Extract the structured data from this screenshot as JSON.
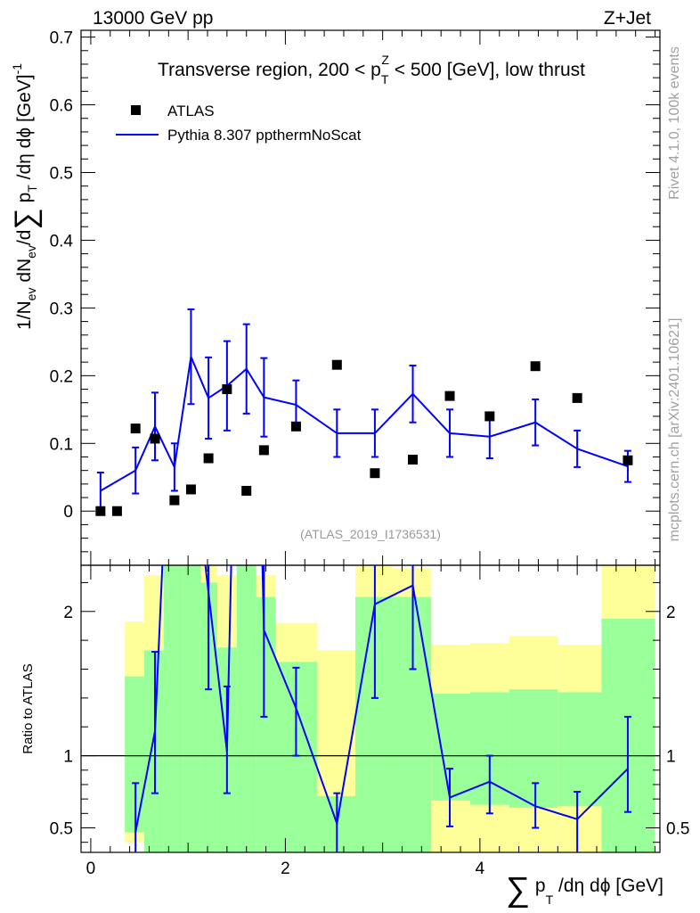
{
  "header": {
    "left": "13000 GeV pp",
    "right": "Z+Jet"
  },
  "side_text": {
    "rivet": "Rivet 4.1.0,  100k events",
    "mcplots": "mcplots.cern.ch [arXiv:2401.10621]"
  },
  "chart_data": {
    "type": "scatter",
    "title": "Transverse region, 200 < p_T^Z < 500 [GeV], low thrust",
    "title_parts": {
      "pre": "Transverse region, 200 < p",
      "sub": "T",
      "sup": "Z",
      "post": " < 500 [GeV], low thrust"
    },
    "analysis_label": "(ATLAS_2019_I1736531)",
    "xlabel": {
      "sigma": "∑",
      "p": "p",
      "sub": "T",
      "rest": " /dη dϕ [GeV]"
    },
    "ylabel_main": "1/N_ev dN_ev/d∑ p_T /dη dϕ  [GeV]^-1",
    "ylabel_ratio": "Ratio to ATLAS",
    "xlim": [
      -0.1,
      5.85
    ],
    "x_ticks": [
      "0",
      "2",
      "4"
    ],
    "main_ylim": [
      -0.08,
      0.71
    ],
    "main_y_ticks": [
      "0",
      "0.1",
      "0.2",
      "0.3",
      "0.4",
      "0.5",
      "0.6",
      "0.7"
    ],
    "ratio_ylim": [
      0.33,
      2.32
    ],
    "ratio_y_ticks": [
      "0.5",
      "1",
      "2"
    ],
    "legend": [
      {
        "name": "ATLAS",
        "marker": "square",
        "color": "#000000"
      },
      {
        "name": "Pythia 8.307 ppthermNoScat",
        "marker": "line",
        "color": "#0000ff"
      }
    ],
    "series": [
      {
        "name": "ATLAS",
        "x": [
          0.1,
          0.27,
          0.46,
          0.66,
          0.86,
          1.03,
          1.21,
          1.4,
          1.6,
          1.78,
          2.11,
          2.53,
          2.92,
          3.31,
          3.69,
          4.1,
          4.57,
          5.0,
          5.52
        ],
        "y": [
          0.0,
          0.0,
          0.122,
          0.107,
          0.016,
          0.032,
          0.078,
          0.18,
          0.03,
          0.09,
          0.125,
          0.216,
          0.056,
          0.076,
          0.17,
          0.14,
          0.214,
          0.167,
          0.075
        ]
      },
      {
        "name": "Pythia 8.307 ppthermNoScat",
        "x": [
          0.1,
          0.46,
          0.66,
          0.86,
          1.03,
          1.21,
          1.4,
          1.6,
          1.78,
          2.11,
          2.53,
          2.92,
          3.31,
          3.69,
          4.1,
          4.57,
          5.0,
          5.52
        ],
        "y": [
          0.03,
          0.06,
          0.125,
          0.065,
          0.228,
          0.167,
          0.185,
          0.21,
          0.168,
          0.157,
          0.115,
          0.115,
          0.173,
          0.115,
          0.11,
          0.131,
          0.092,
          0.066
        ],
        "err": [
          0.027,
          0.034,
          0.05,
          0.035,
          0.07,
          0.06,
          0.066,
          0.066,
          0.058,
          0.036,
          0.035,
          0.035,
          0.042,
          0.035,
          0.032,
          0.034,
          0.027,
          0.023
        ]
      }
    ],
    "ratio": {
      "x": [
        0.46,
        0.66,
        0.86,
        1.21,
        1.4,
        1.6,
        1.78,
        2.11,
        2.53,
        2.92,
        3.31,
        3.69,
        4.1,
        4.57,
        5.0,
        5.52
      ],
      "y": [
        0.47,
        1.17,
        4.2,
        2.13,
        1.03,
        7.0,
        1.87,
        1.33,
        0.53,
        2.05,
        2.18,
        0.71,
        0.82,
        0.65,
        0.56,
        0.91
      ],
      "lo": [
        0.3,
        0.74,
        2.8,
        1.46,
        0.74,
        4.5,
        1.27,
        1.0,
        0.3,
        1.4,
        1.6,
        0.51,
        0.6,
        0.5,
        0.32,
        0.61
      ],
      "hi": [
        0.81,
        1.72,
        5.0,
        2.8,
        1.48,
        9.0,
        2.6,
        1.61,
        0.74,
        2.6,
        2.7,
        0.91,
        1.0,
        0.81,
        0.75,
        1.27
      ],
      "bands": [
        {
          "x0": 0.35,
          "x1": 0.55,
          "g_lo": 0.47,
          "g_hi": 1.55,
          "y_lo": 0.4,
          "y_hi": 1.93
        },
        {
          "x0": 0.55,
          "x1": 0.75,
          "g_lo": 0.33,
          "g_hi": 1.73,
          "y_lo": 0.33,
          "y_hi": 2.25
        },
        {
          "x0": 0.75,
          "x1": 0.95,
          "g_lo": 0.33,
          "g_hi": 2.35,
          "y_lo": 0.33,
          "y_hi": 2.35
        },
        {
          "x0": 0.95,
          "x1": 1.13,
          "g_lo": 0.33,
          "g_hi": 2.35,
          "y_lo": 0.33,
          "y_hi": 2.35
        },
        {
          "x0": 1.13,
          "x1": 1.3,
          "g_lo": 0.33,
          "g_hi": 2.2,
          "y_lo": 0.33,
          "y_hi": 2.35
        },
        {
          "x0": 1.3,
          "x1": 1.5,
          "g_lo": 0.33,
          "g_hi": 1.75,
          "y_lo": 0.33,
          "y_hi": 2.25
        },
        {
          "x0": 1.5,
          "x1": 1.7,
          "g_lo": 0.33,
          "g_hi": 2.35,
          "y_lo": 0.33,
          "y_hi": 2.35
        },
        {
          "x0": 1.7,
          "x1": 1.9,
          "g_lo": 0.33,
          "g_hi": 2.1,
          "y_lo": 0.33,
          "y_hi": 2.25
        },
        {
          "x0": 1.9,
          "x1": 2.33,
          "g_lo": 0.33,
          "g_hi": 1.65,
          "y_lo": 0.33,
          "y_hi": 1.92
        },
        {
          "x0": 2.33,
          "x1": 2.72,
          "g_lo": 0.33,
          "g_hi": 0.72,
          "y_lo": 0.33,
          "y_hi": 1.73
        },
        {
          "x0": 2.72,
          "x1": 3.1,
          "g_lo": 0.33,
          "g_hi": 2.1,
          "y_lo": 0.33,
          "y_hi": 2.35
        },
        {
          "x0": 3.1,
          "x1": 3.5,
          "g_lo": 0.33,
          "g_hi": 2.1,
          "y_lo": 0.33,
          "y_hi": 2.3
        },
        {
          "x0": 3.5,
          "x1": 3.9,
          "g_lo": 0.69,
          "g_hi": 1.43,
          "y_lo": 0.33,
          "y_hi": 1.77
        },
        {
          "x0": 3.9,
          "x1": 4.3,
          "g_lo": 0.66,
          "g_hi": 1.44,
          "y_lo": 0.33,
          "y_hi": 1.78
        },
        {
          "x0": 4.3,
          "x1": 4.8,
          "g_lo": 0.64,
          "g_hi": 1.46,
          "y_lo": 0.33,
          "y_hi": 1.83
        },
        {
          "x0": 4.8,
          "x1": 5.25,
          "g_lo": 0.65,
          "g_hi": 1.44,
          "y_lo": 0.33,
          "y_hi": 1.77
        },
        {
          "x0": 5.25,
          "x1": 5.8,
          "g_lo": 0.33,
          "g_hi": 1.95,
          "y_lo": 0.33,
          "y_hi": 2.35
        }
      ],
      "band_colors": {
        "inner": "#99ff99",
        "outer": "#ffff99"
      }
    }
  },
  "colors": {
    "data": "#000000",
    "mc": "#0000ff",
    "watermark": "#a0a0a0",
    "analysis_label": "#999999"
  }
}
